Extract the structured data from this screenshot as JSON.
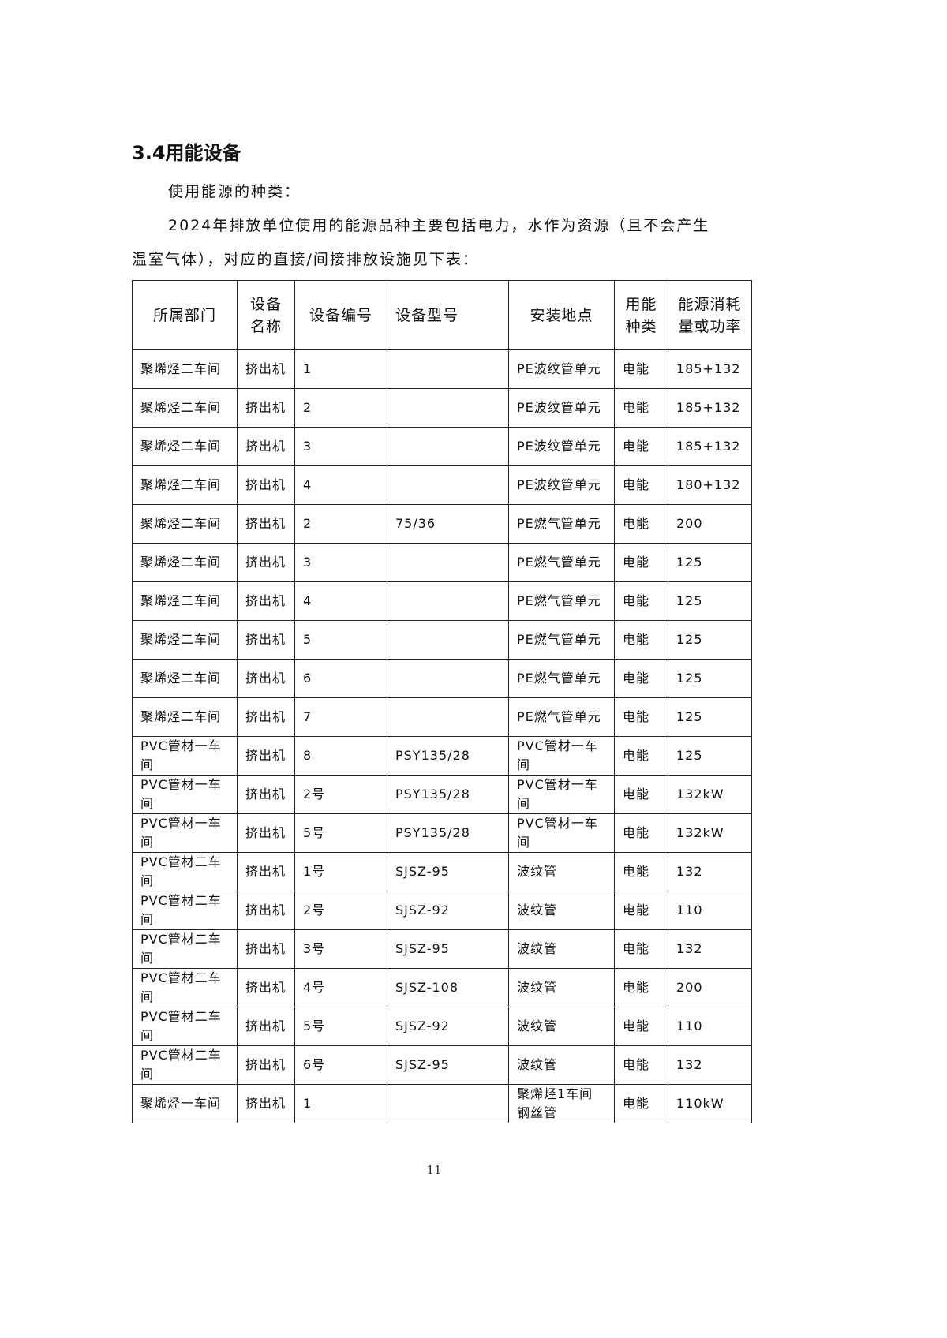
{
  "heading": "3.4用能设备",
  "para1": "使用能源的种类：",
  "para2_line1": "2024年排放单位使用的能源品种主要包括电力，水作为资源（且不会产生",
  "para2_line2": "温室气体），对应的直接/间接排放设施见下表：",
  "table": {
    "headers": [
      "所属部门",
      "设备名称",
      "设备编号",
      "设备型号",
      "安装地点",
      "用能种类",
      "能源消耗量或功率"
    ],
    "rows": [
      [
        "聚烯烃二车间",
        "挤出机",
        "1",
        "",
        "PE波纹管单元",
        "电能",
        "185+132"
      ],
      [
        "聚烯烃二车间",
        "挤出机",
        "2",
        "",
        "PE波纹管单元",
        "电能",
        "185+132"
      ],
      [
        "聚烯烃二车间",
        "挤出机",
        "3",
        "",
        "PE波纹管单元",
        "电能",
        "185+132"
      ],
      [
        "聚烯烃二车间",
        "挤出机",
        "4",
        "",
        "PE波纹管单元",
        "电能",
        "180+132"
      ],
      [
        "聚烯烃二车间",
        "挤出机",
        "2",
        "75/36",
        "PE燃气管单元",
        "电能",
        "200"
      ],
      [
        "聚烯烃二车间",
        "挤出机",
        "3",
        "",
        "PE燃气管单元",
        "电能",
        "125"
      ],
      [
        "聚烯烃二车间",
        "挤出机",
        "4",
        "",
        "PE燃气管单元",
        "电能",
        "125"
      ],
      [
        "聚烯烃二车间",
        "挤出机",
        "5",
        "",
        "PE燃气管单元",
        "电能",
        "125"
      ],
      [
        "聚烯烃二车间",
        "挤出机",
        "6",
        "",
        "PE燃气管单元",
        "电能",
        "125"
      ],
      [
        "聚烯烃二车间",
        "挤出机",
        "7",
        "",
        "PE燃气管单元",
        "电能",
        "125"
      ],
      [
        "PVC管材一车间",
        "挤出机",
        "8",
        "PSY135/28",
        "PVC管材一车间",
        "电能",
        "125"
      ],
      [
        "PVC管材一车间",
        "挤出机",
        "2号",
        "PSY135/28",
        "PVC管材一车间",
        "电能",
        "132kW"
      ],
      [
        "PVC管材一车间",
        "挤出机",
        "5号",
        "PSY135/28",
        "PVC管材一车间",
        "电能",
        "132kW"
      ],
      [
        "PVC管材二车间",
        "挤出机",
        "1号",
        "SJSZ-95",
        "波纹管",
        "电能",
        "132"
      ],
      [
        "PVC管材二车间",
        "挤出机",
        "2号",
        "SJSZ-92",
        "波纹管",
        "电能",
        "110"
      ],
      [
        "PVC管材二车间",
        "挤出机",
        "3号",
        "SJSZ-95",
        "波纹管",
        "电能",
        "132"
      ],
      [
        "PVC管材二车间",
        "挤出机",
        "4号",
        "SJSZ-108",
        "波纹管",
        "电能",
        "200"
      ],
      [
        "PVC管材二车间",
        "挤出机",
        "5号",
        "SJSZ-92",
        "波纹管",
        "电能",
        "110"
      ],
      [
        "PVC管材二车间",
        "挤出机",
        "6号",
        "SJSZ-95",
        "波纹管",
        "电能",
        "132"
      ],
      [
        "聚烯烃一车间",
        "挤出机",
        "1",
        "",
        "聚烯烃1车间钢丝管",
        "电能",
        "110kW"
      ]
    ]
  },
  "page_number": "11"
}
